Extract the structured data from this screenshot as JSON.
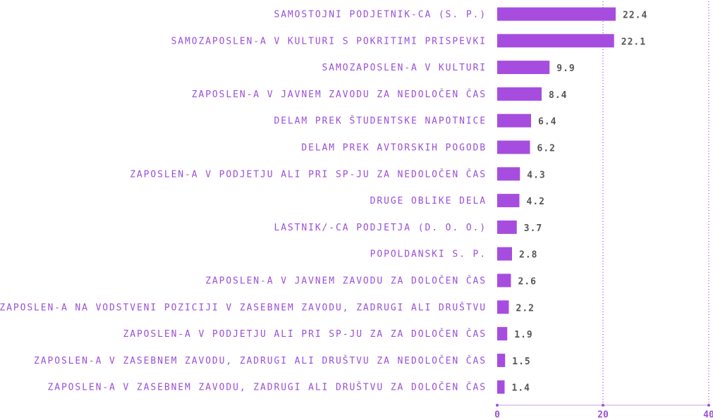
{
  "chart_data": {
    "type": "bar",
    "orientation": "horizontal",
    "categories": [
      "SAMOSTOJNI PODJETNIK-CA (S. P.)",
      "SAMOZAPOSLEN-A V KULTURI S POKRITIMI PRISPEVKI",
      "SAMOZAPOSLEN-A V KULTURI",
      "ZAPOSLEN-A V JAVNEM ZAVODU ZA NEDOLOČEN ČAS",
      "DELAM PREK ŠTUDENTSKE NAPOTNICE",
      "DELAM PREK AVTORSKIH POGODB",
      "ZAPOSLEN-A V PODJETJU ALI PRI SP-JU ZA NEDOLOČEN ČAS",
      "DRUGE OBLIKE DELA",
      "LASTNIK/-CA PODJETJA (D. O. O.)",
      "POPOLDANSKI S. P.",
      "ZAPOSLEN-A V JAVNEM ZAVODU ZA DOLOČEN ČAS",
      "ZAPOSLEN-A NA VODSTVENI POZICIJI V ZASEBNEM ZAVODU, ZADRUGI ALI DRUŠTVU",
      "ZAPOSLEN-A V PODJETJU ALI PRI SP-JU ZA ZA DOLOČEN ČAS",
      "ZAPOSLEN-A V ZASEBNEM ZAVODU, ZADRUGI ALI DRUŠTVU ZA NEDOLOČEN ČAS",
      "ZAPOSLEN-A V ZASEBNEM ZAVODU, ZADRUGI ALI DRUŠTVU ZA DOLOČEN ČAS"
    ],
    "values": [
      22.4,
      22.1,
      9.9,
      8.4,
      6.4,
      6.2,
      4.3,
      4.2,
      3.7,
      2.8,
      2.6,
      2.2,
      1.9,
      1.5,
      1.4
    ],
    "color": "#a64ddf",
    "xlim": [
      0,
      40
    ],
    "xticks": [
      0,
      20,
      40
    ],
    "grid": true
  }
}
